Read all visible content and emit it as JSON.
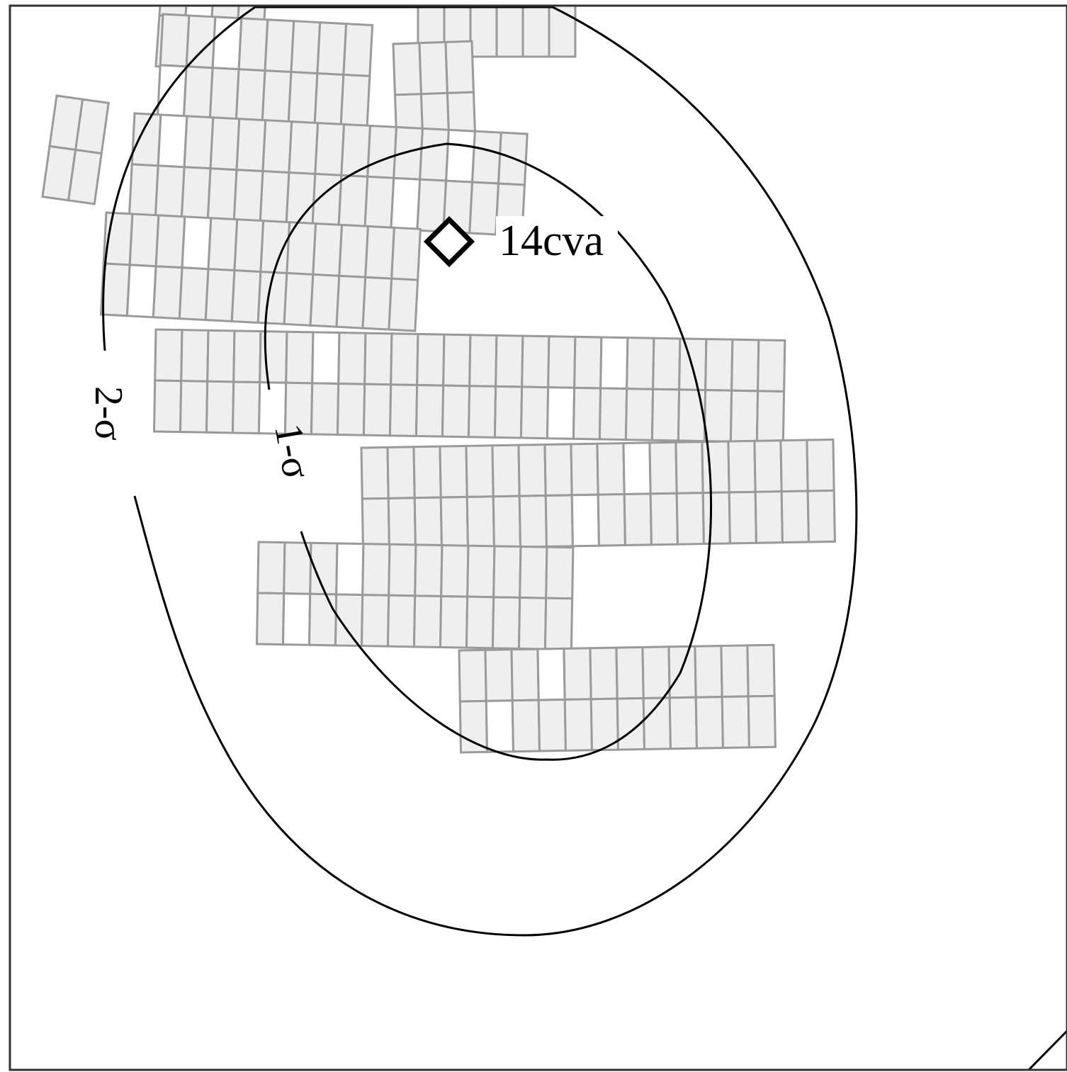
{
  "labels": {
    "source": "14cva",
    "outer_contour": "2-σ",
    "inner_contour": "1-σ"
  }
}
